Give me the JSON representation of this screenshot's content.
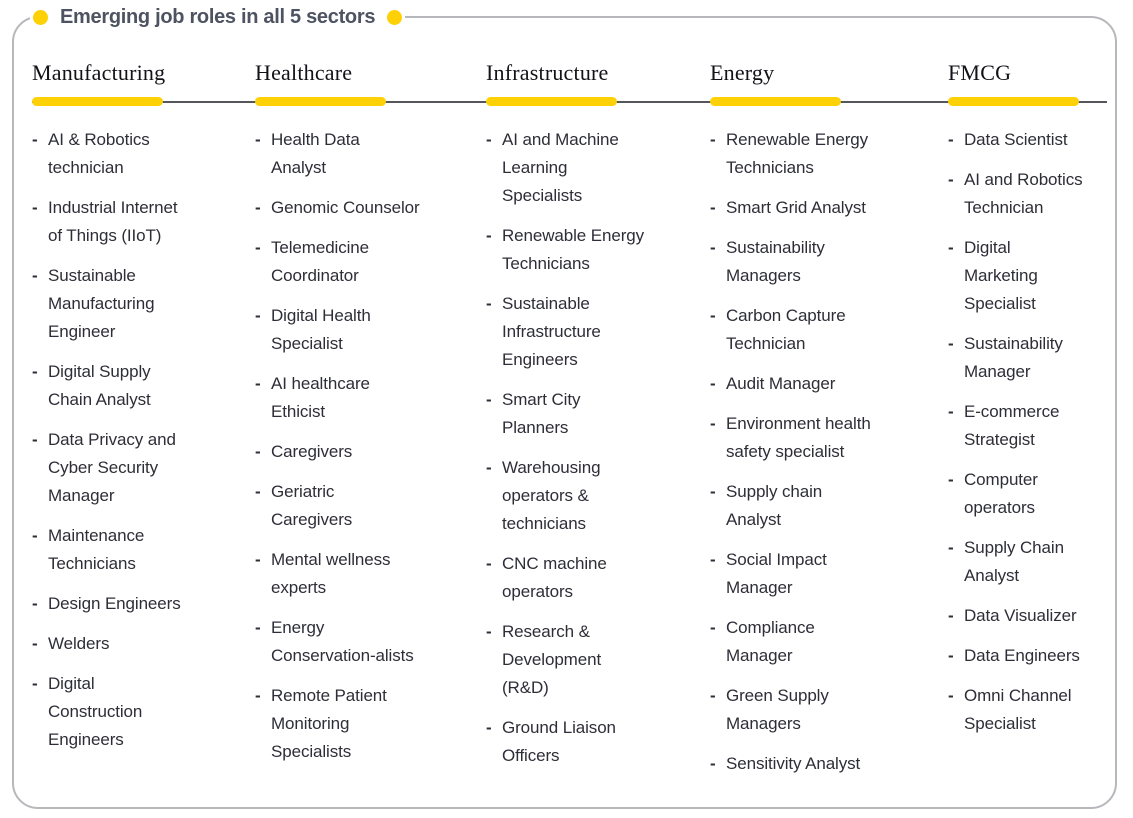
{
  "title": "Emerging job roles in all 5 sectors",
  "bullet_char": "-",
  "colors": {
    "accent_yellow": "#FDD105",
    "title_text": "#4d5361",
    "body_text": "#2e2e38",
    "rule_line": "#55565b",
    "frame_border": "#b7b8bc"
  },
  "sectors": [
    {
      "name": "Manufacturing",
      "roles": [
        "AI & Robotics\ntechnician",
        "Industrial Internet\nof Things (IIoT)",
        "Sustainable\nManufacturing\nEngineer",
        "Digital Supply\nChain Analyst",
        "Data Privacy and\nCyber Security\nManager",
        "Maintenance\nTechnicians",
        "Design Engineers",
        "Welders",
        "Digital\nConstruction\nEngineers"
      ]
    },
    {
      "name": "Healthcare",
      "roles": [
        "Health Data\nAnalyst",
        "Genomic Counselor",
        "Telemedicine\nCoordinator",
        "Digital Health\nSpecialist",
        "AI healthcare\nEthicist",
        "Caregivers",
        "Geriatric\nCaregivers",
        "Mental wellness\nexperts",
        "Energy\nConservation-alists",
        "Remote Patient\nMonitoring\nSpecialists"
      ]
    },
    {
      "name": "Infrastructure",
      "roles": [
        "AI and Machine\nLearning\nSpecialists",
        "Renewable Energy\nTechnicians",
        "Sustainable\nInfrastructure\nEngineers",
        "Smart City\nPlanners",
        "Warehousing\noperators &\ntechnicians",
        "CNC machine\noperators",
        "Research &\nDevelopment\n(R&D)",
        "Ground Liaison\nOfficers"
      ]
    },
    {
      "name": "Energy",
      "roles": [
        "Renewable Energy\nTechnicians",
        "Smart Grid Analyst",
        "Sustainability\nManagers",
        "Carbon Capture\nTechnician",
        "Audit Manager",
        "Environment health\nsafety specialist",
        "Supply chain\nAnalyst",
        "Social Impact\nManager",
        "Compliance\nManager",
        "Green Supply\nManagers",
        "Sensitivity Analyst"
      ]
    },
    {
      "name": "FMCG",
      "roles": [
        "Data Scientist",
        "AI and Robotics\nTechnician",
        "Digital\nMarketing\nSpecialist",
        "Sustainability\nManager",
        "E-commerce\nStrategist",
        "Computer\noperators",
        "Supply Chain\nAnalyst",
        "Data Visualizer",
        "Data Engineers",
        "Omni Channel\nSpecialist"
      ]
    }
  ]
}
